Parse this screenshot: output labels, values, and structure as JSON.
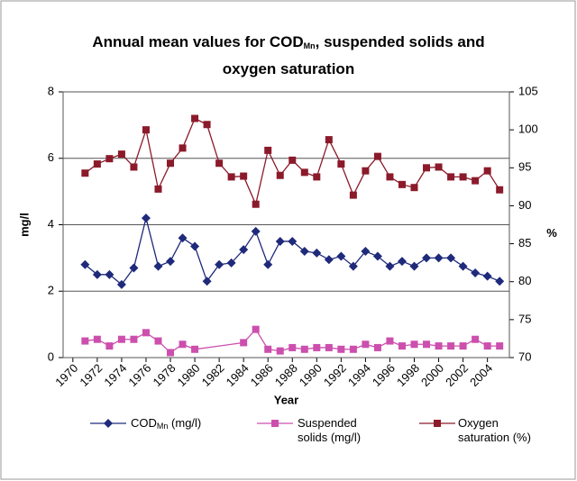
{
  "chart_data": {
    "type": "line",
    "title": {
      "before": "Annual mean values for COD",
      "sub": "Mn",
      "after": ", suspended solids and oxygen saturation"
    },
    "x_label": "Year",
    "y_label": "mg/l",
    "y2_label": "%",
    "x": [
      1971,
      1972,
      1973,
      1974,
      1975,
      1976,
      1977,
      1978,
      1979,
      1980,
      1981,
      1982,
      1983,
      1984,
      1985,
      1986,
      1987,
      1988,
      1989,
      1990,
      1991,
      1992,
      1993,
      1994,
      1995,
      1996,
      1997,
      1998,
      1999,
      2000,
      2001,
      2002,
      2003,
      2004,
      2005
    ],
    "xlim": [
      1969.2,
      2005.8
    ],
    "xticks": [
      1970,
      1972,
      1974,
      1976,
      1978,
      1980,
      1982,
      1984,
      1986,
      1988,
      1990,
      1992,
      1994,
      1996,
      1998,
      2000,
      2002,
      2004
    ],
    "ylim": [
      0,
      8
    ],
    "yticks": [
      0,
      2,
      4,
      6,
      8
    ],
    "y2lim": [
      70,
      105
    ],
    "y2ticks": [
      70,
      75,
      80,
      85,
      90,
      95,
      100,
      105
    ],
    "grid": true,
    "series": [
      {
        "name": {
          "main": "COD",
          "sub": "Mn",
          "unit": "(mg/l)"
        },
        "color": "#1f2a7a",
        "marker": "diamond",
        "values": [
          2.8,
          2.5,
          2.5,
          2.2,
          2.7,
          4.2,
          2.75,
          2.9,
          3.6,
          3.35,
          2.3,
          2.8,
          2.85,
          3.25,
          3.8,
          2.8,
          3.5,
          3.5,
          3.2,
          3.15,
          2.95,
          3.05,
          2.75,
          3.2,
          3.05,
          2.75,
          2.9,
          2.75,
          3.0,
          3.0,
          3.0,
          2.75,
          2.55,
          2.45,
          2.3
        ]
      },
      {
        "name": "Suspended solids (mg/l)",
        "color": "#cc4fae",
        "marker": "square",
        "x": [
          1971,
          1972,
          1973,
          1974,
          1975,
          1976,
          1977,
          1978,
          1979,
          1980,
          1984,
          1985,
          1986,
          1987,
          1988,
          1989,
          1990,
          1991,
          1992,
          1993,
          1994,
          1995,
          1996,
          1997,
          1998,
          1999,
          2000,
          2001,
          2002,
          2003,
          2004,
          2005
        ],
        "values": [
          0.5,
          0.55,
          0.35,
          0.55,
          0.55,
          0.75,
          0.5,
          0.15,
          0.4,
          0.25,
          0.45,
          0.85,
          0.25,
          0.2,
          0.3,
          0.25,
          0.3,
          0.3,
          0.25,
          0.25,
          0.4,
          0.3,
          0.5,
          0.35,
          0.4,
          0.4,
          0.35,
          0.35,
          0.35,
          0.55,
          0.35,
          0.35
        ]
      },
      {
        "name": "Oxygen saturation (%)",
        "color": "#8b1a2a",
        "marker": "square",
        "axis": "y2",
        "values": [
          94.3,
          95.5,
          96.2,
          96.8,
          95.1,
          100,
          92.2,
          95.6,
          97.6,
          101.5,
          100.7,
          95.6,
          93.8,
          93.9,
          90.2,
          97.3,
          94,
          96,
          94.4,
          93.8,
          98.7,
          95.5,
          91.4,
          94.6,
          96.5,
          93.8,
          92.8,
          92.4,
          95,
          95.1,
          93.8,
          93.8,
          93.3,
          94.6,
          92.1
        ]
      }
    ]
  }
}
